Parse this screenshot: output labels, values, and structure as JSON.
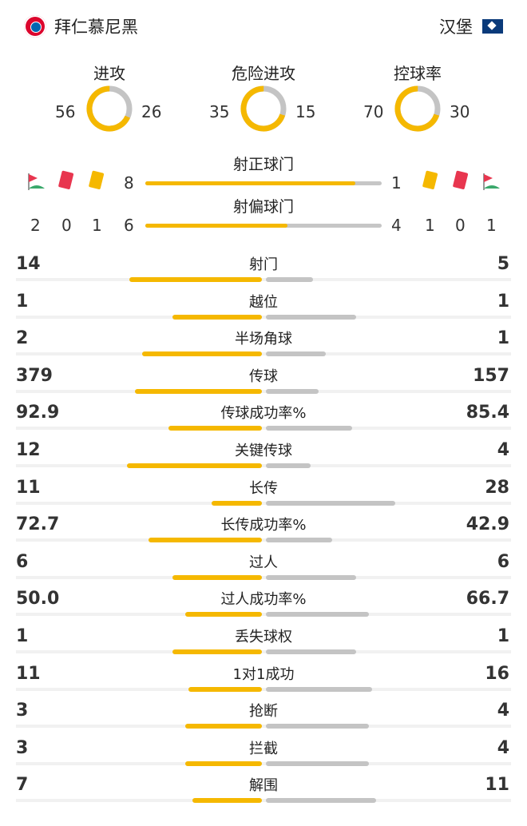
{
  "header": {
    "home_team": "拜仁慕尼黑",
    "away_team": "汉堡",
    "home_badge_icon": "bayern-munich-crest",
    "away_badge_icon": "hamburg-crest"
  },
  "colors": {
    "home": "#f5b800",
    "away": "#c4c4c4"
  },
  "donuts": [
    {
      "title": "进攻",
      "home": "56",
      "away": "26",
      "home_value": 56,
      "away_value": 26
    },
    {
      "title": "危险进攻",
      "home": "35",
      "away": "15",
      "home_value": 35,
      "away_value": 15
    },
    {
      "title": "控球率",
      "home": "70",
      "away": "30",
      "home_value": 70,
      "away_value": 30
    }
  ],
  "shots": {
    "on_target": {
      "label": "射正球门",
      "home": "8",
      "away": "1",
      "home_value": 8,
      "away_value": 1
    },
    "off_target": {
      "label": "射偏球门",
      "home": "6",
      "away": "4",
      "home_value": 6,
      "away_value": 4
    }
  },
  "cards": {
    "home": {
      "corners": "2",
      "red": "0",
      "yellow": "1"
    },
    "away": {
      "yellow": "1",
      "red": "0",
      "corners": "1"
    },
    "icons": {
      "corner": "corner-flag-icon",
      "red": "red-card-icon",
      "yellow": "yellow-card-icon"
    }
  },
  "stats": [
    {
      "label": "射门",
      "home": "14",
      "away": "5",
      "home_value": 14,
      "away_value": 5
    },
    {
      "label": "越位",
      "home": "1",
      "away": "1",
      "home_value": 1,
      "away_value": 1
    },
    {
      "label": "半场角球",
      "home": "2",
      "away": "1",
      "home_value": 2,
      "away_value": 1
    },
    {
      "label": "传球",
      "home": "379",
      "away": "157",
      "home_value": 379,
      "away_value": 157
    },
    {
      "label": "传球成功率%",
      "home": "92.9",
      "away": "85.4",
      "home_value": 92.9,
      "away_value": 85.4
    },
    {
      "label": "关键传球",
      "home": "12",
      "away": "4",
      "home_value": 12,
      "away_value": 4
    },
    {
      "label": "长传",
      "home": "11",
      "away": "28",
      "home_value": 11,
      "away_value": 28
    },
    {
      "label": "长传成功率%",
      "home": "72.7",
      "away": "42.9",
      "home_value": 72.7,
      "away_value": 42.9
    },
    {
      "label": "过人",
      "home": "6",
      "away": "6",
      "home_value": 6,
      "away_value": 6
    },
    {
      "label": "过人成功率%",
      "home": "50.0",
      "away": "66.7",
      "home_value": 50.0,
      "away_value": 66.7
    },
    {
      "label": "丢失球权",
      "home": "1",
      "away": "1",
      "home_value": 1,
      "away_value": 1
    },
    {
      "label": "1对1成功",
      "home": "11",
      "away": "16",
      "home_value": 11,
      "away_value": 16
    },
    {
      "label": "抢断",
      "home": "3",
      "away": "4",
      "home_value": 3,
      "away_value": 4
    },
    {
      "label": "拦截",
      "home": "3",
      "away": "4",
      "home_value": 3,
      "away_value": 4
    },
    {
      "label": "解围",
      "home": "7",
      "away": "11",
      "home_value": 7,
      "away_value": 11
    }
  ]
}
